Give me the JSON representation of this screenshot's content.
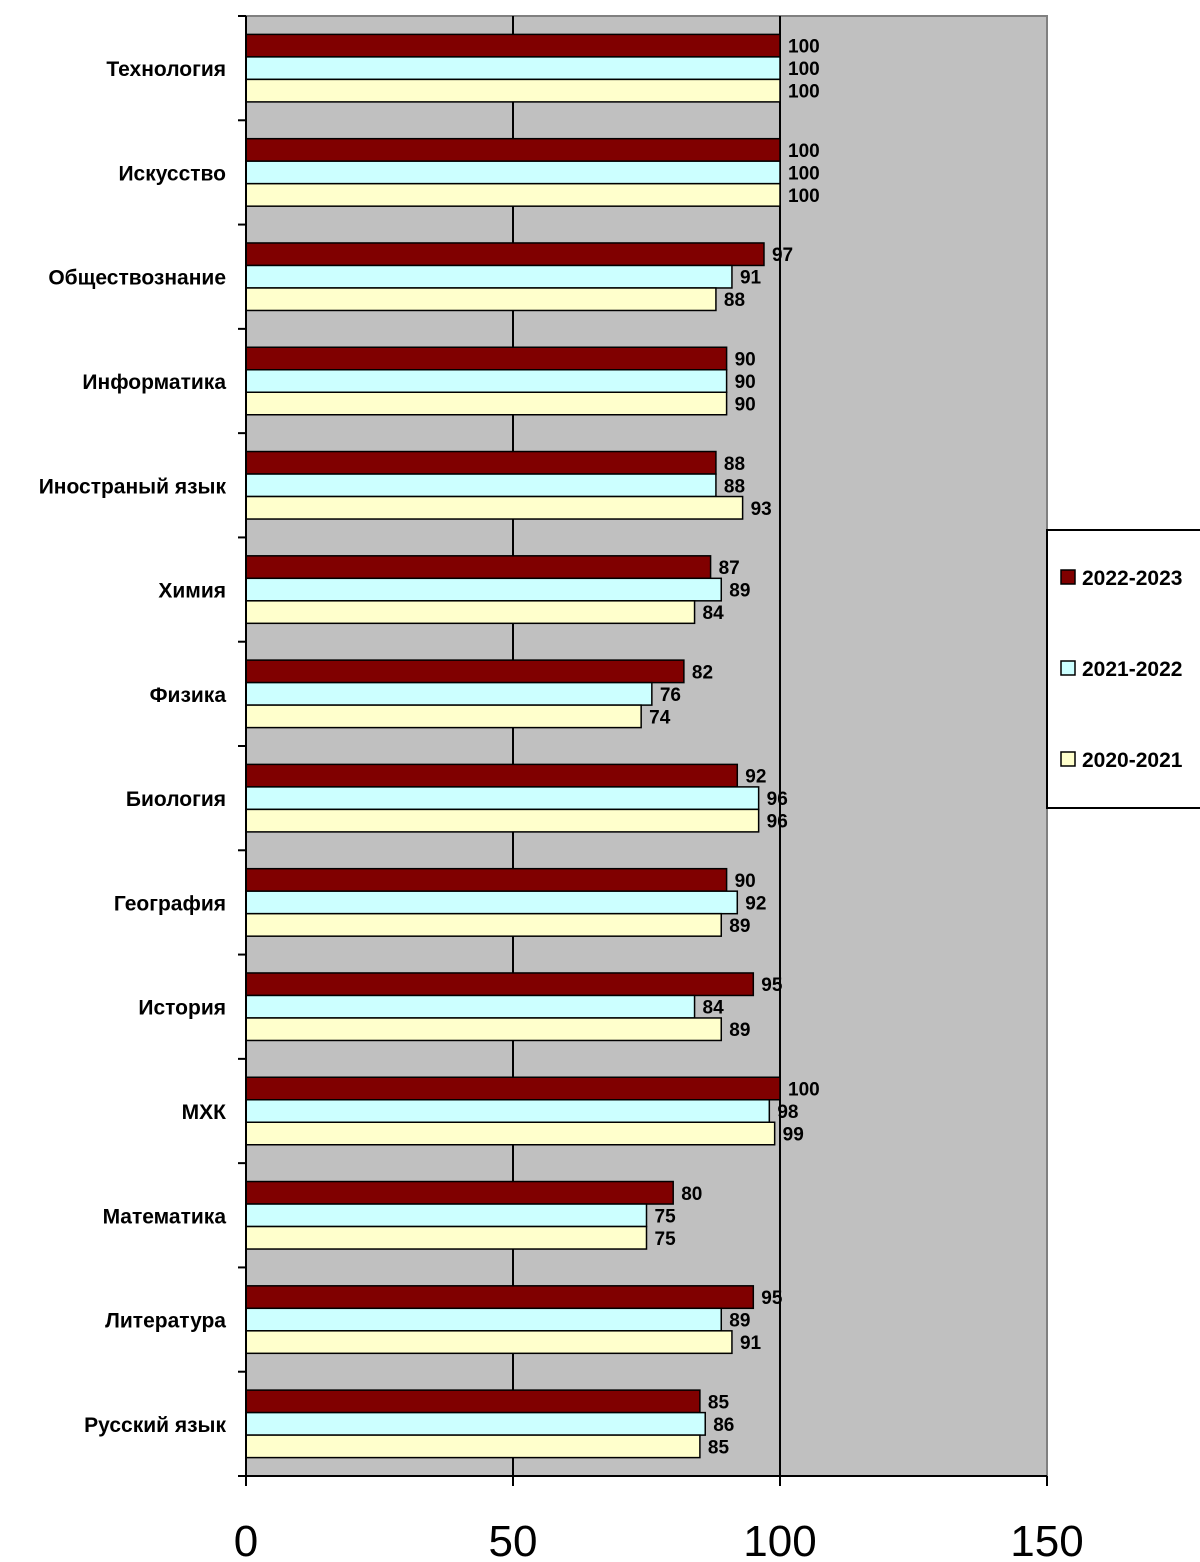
{
  "chart_data": {
    "type": "bar",
    "orientation": "horizontal",
    "categories": [
      "Русский язык",
      "Литература",
      "Математика",
      "МХК",
      "История",
      "География",
      "Биология",
      "Физика",
      "Химия",
      "Иностраный язык",
      "Информатика",
      "Обществознание",
      "Искусство",
      "Технология"
    ],
    "series": [
      {
        "name": "2022-2023",
        "color": "#800000",
        "values": [
          85,
          95,
          80,
          100,
          95,
          90,
          92,
          82,
          87,
          88,
          90,
          97,
          100,
          100
        ]
      },
      {
        "name": "2021-2022",
        "color": "#ccffff",
        "values": [
          86,
          89,
          75,
          98,
          84,
          92,
          96,
          76,
          89,
          88,
          90,
          91,
          100,
          100
        ]
      },
      {
        "name": "2020-2021",
        "color": "#ffffcc",
        "values": [
          85,
          91,
          75,
          99,
          89,
          89,
          96,
          74,
          84,
          93,
          90,
          88,
          100,
          100
        ]
      }
    ],
    "xlim": [
      0,
      150
    ],
    "xticks": [
      "0",
      "50",
      "100",
      "150"
    ],
    "grid": "vertical major gridlines",
    "plot_background": "#c0c0c0",
    "legend": "right",
    "title": "",
    "xlabel": "",
    "ylabel": ""
  }
}
